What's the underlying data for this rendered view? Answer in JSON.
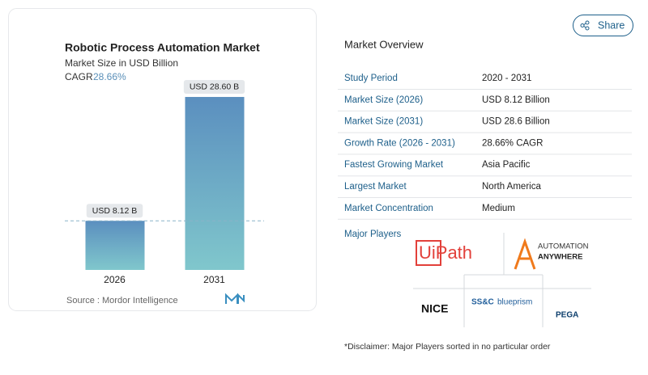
{
  "chart_data": {
    "type": "bar",
    "title": "Robotic Process Automation Market",
    "subtitle": "Market Size in USD Billion",
    "cagr_label": "CAGR",
    "cagr_value": "28.66%",
    "categories": [
      "2026",
      "2031"
    ],
    "values": [
      8.12,
      28.6
    ],
    "value_labels": [
      "USD 8.12 B",
      "USD 28.60 B"
    ],
    "color_top": "#5b8fbf",
    "color_bottom": "#80c7cc",
    "ylim": [
      0,
      31
    ],
    "source": "Source :  Mordor Intelligence"
  },
  "share": "Share",
  "overview": {
    "title": "Market Overview",
    "rows": [
      [
        "Study Period",
        "2020 - 2031"
      ],
      [
        "Market Size (2026)",
        "USD 8.12 Billion"
      ],
      [
        "Market Size (2031)",
        "USD 28.6 Billion"
      ],
      [
        "Growth Rate (2026 - 2031)",
        "28.66% CAGR"
      ],
      [
        "Fastest Growing Market",
        "Asia Pacific"
      ],
      [
        "Largest Market",
        "North America"
      ],
      [
        "Market Concentration",
        "Medium"
      ]
    ],
    "players_label": "Major Players",
    "players": [
      "UiPath",
      "AUTOMATION",
      "ANYWHERE",
      "NICE",
      "SS&C",
      "blueprism",
      "PEGA"
    ],
    "disclaimer": "*Disclaimer: Major Players sorted in no particular order"
  }
}
